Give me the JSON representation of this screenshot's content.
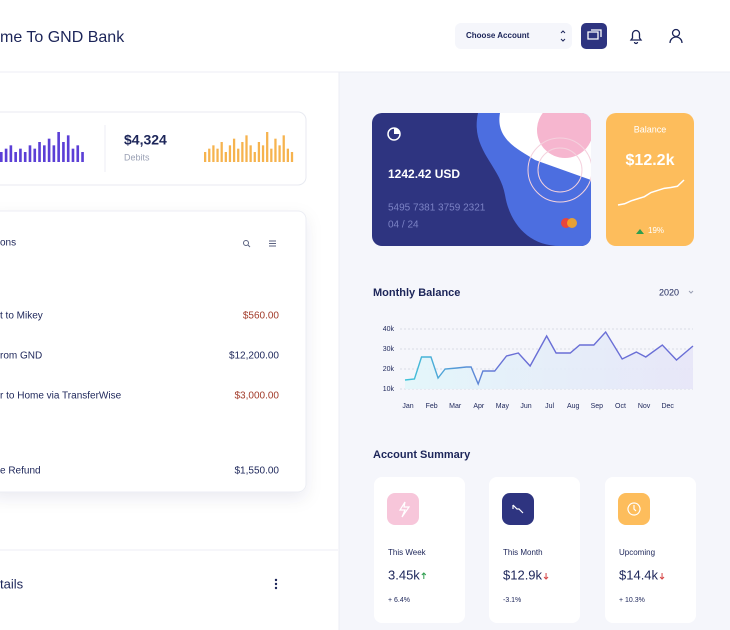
{
  "header": {
    "title": "me To GND Bank",
    "account_select": "Choose Account"
  },
  "stats": {
    "amount": "$4,324",
    "label": "Debits",
    "bars_left": [
      3,
      4,
      5,
      3,
      4,
      3,
      5,
      4,
      6,
      5,
      7,
      5,
      9,
      6,
      8,
      4,
      5,
      3
    ],
    "bars_right": [
      3,
      4,
      5,
      4,
      6,
      3,
      5,
      7,
      4,
      6,
      8,
      5,
      3,
      6,
      5,
      9,
      4,
      7,
      5,
      8,
      4,
      3
    ]
  },
  "transactions": {
    "title": "ons",
    "items": [
      {
        "description": "t to Mikey",
        "amount": "$560.00"
      },
      {
        "description": "rom GND",
        "amount": "$12,200.00"
      },
      {
        "description": "r to Home via TransferWise",
        "amount": "$3,000.00"
      },
      {
        "description": "e Refund",
        "amount": "$1,550.00"
      }
    ]
  },
  "details_title": "tails",
  "card": {
    "amount": "1242.42 USD",
    "number": "5495 7381 3759 2321",
    "expiry": "04 / 24"
  },
  "balance": {
    "title": "Balance",
    "amount": "$12.2k",
    "change": "19%",
    "trend": [
      2,
      2.3,
      3,
      3.5,
      4,
      5,
      5.5,
      6,
      6.2,
      6.5,
      8
    ]
  },
  "chart_data": {
    "type": "line",
    "title": "Monthly Balance",
    "year": "2020",
    "x": [
      0,
      0.4,
      0.7,
      1.1,
      1.4,
      1.7,
      2.2,
      2.6,
      2.8,
      3.1,
      3.3,
      3.8,
      4.3,
      4.8,
      5.3,
      6.0,
      6.4,
      7.0,
      7.4,
      8.0,
      8.5,
      9.2,
      9.8,
      10.2,
      10.9,
      11.5,
      12.2
    ],
    "series": [
      {
        "name": "Balance",
        "color": "#6a6fd6",
        "values": [
          14500,
          15000,
          26000,
          26000,
          15500,
          20000,
          20500,
          21000,
          21000,
          12500,
          19000,
          19000,
          26500,
          28000,
          21500,
          36500,
          28000,
          28000,
          32000,
          32000,
          38500,
          25000,
          28500,
          26000,
          32000,
          24500,
          31500
        ]
      }
    ],
    "xlim": [
      0,
      12.2
    ],
    "xticks": [
      {
        "value": 0,
        "label": "Jan"
      },
      {
        "value": 1,
        "label": "Feb"
      },
      {
        "value": 2,
        "label": "Mar"
      },
      {
        "value": 3,
        "label": "Apr"
      },
      {
        "value": 4,
        "label": "May"
      },
      {
        "value": 5,
        "label": "Jun"
      },
      {
        "value": 6,
        "label": "Jul"
      },
      {
        "value": 7,
        "label": "Aug"
      },
      {
        "value": 8,
        "label": "Sep"
      },
      {
        "value": 9,
        "label": "Oct"
      },
      {
        "value": 10,
        "label": "Nov"
      },
      {
        "value": 11,
        "label": "Dec"
      }
    ],
    "ylim": [
      10000,
      40000
    ],
    "yticks": [
      {
        "value": 10000,
        "label": "10k"
      },
      {
        "value": 20000,
        "label": "20k"
      },
      {
        "value": 30000,
        "label": "30k"
      },
      {
        "value": 40000,
        "label": "40k"
      }
    ],
    "grid": true
  },
  "summary": {
    "title": "Account Summary",
    "items": [
      {
        "label": "This Week",
        "value": "3.45k",
        "change": "+ 6.4%"
      },
      {
        "label": "This Month",
        "value": "$12.9k",
        "change": "-3.1%"
      },
      {
        "label": "Upcoming",
        "value": "$14.4k",
        "change": "+ 10.3%"
      }
    ]
  }
}
